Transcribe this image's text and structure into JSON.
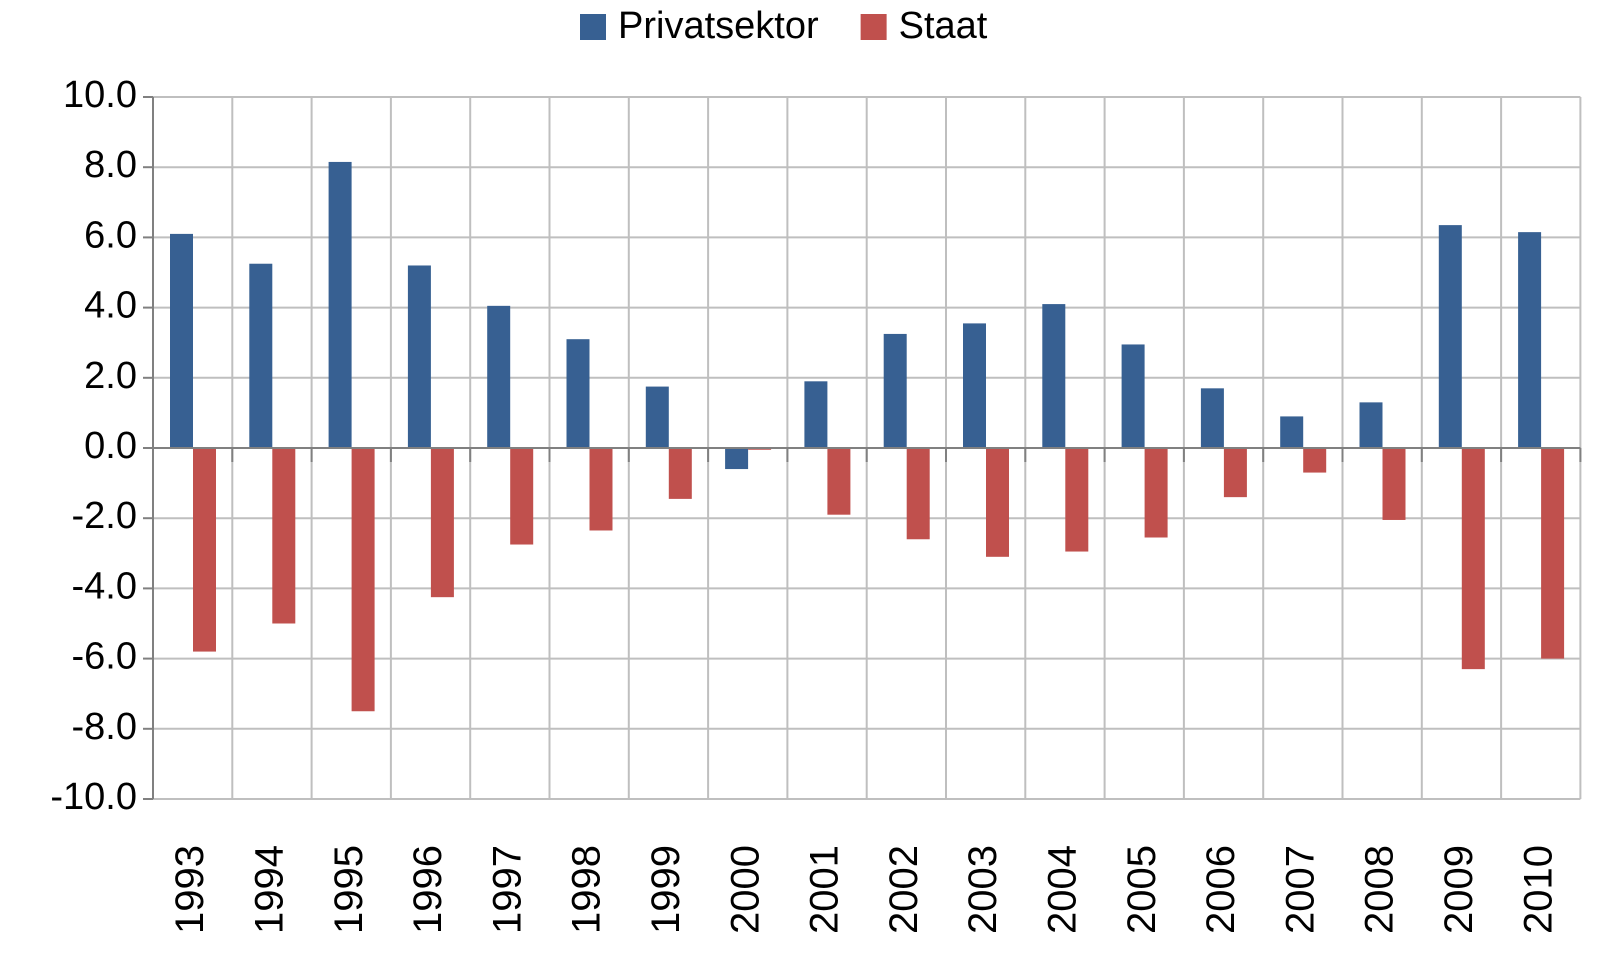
{
  "chart_data": {
    "type": "bar",
    "categories": [
      "1993",
      "1994",
      "1995",
      "1996",
      "1997",
      "1998",
      "1999",
      "2000",
      "2001",
      "2002",
      "2003",
      "2004",
      "2005",
      "2006",
      "2007",
      "2008",
      "2009",
      "2010"
    ],
    "series": [
      {
        "name": "Privatsektor",
        "color": "#376092",
        "values": [
          6.1,
          5.25,
          8.15,
          5.2,
          4.05,
          3.1,
          1.75,
          -0.6,
          1.9,
          3.25,
          3.55,
          4.1,
          2.95,
          1.7,
          0.9,
          1.3,
          6.35,
          6.15
        ]
      },
      {
        "name": "Staat",
        "color": "#c0504d",
        "values": [
          -5.8,
          -5.0,
          -7.5,
          -4.25,
          -2.75,
          -2.35,
          -1.45,
          -0.05,
          -1.9,
          -2.6,
          -3.1,
          -2.95,
          -2.55,
          -1.4,
          -0.7,
          -2.05,
          -6.3,
          -6.0
        ]
      }
    ],
    "ylim": [
      -10,
      10
    ],
    "yticks": [
      {
        "value": -10,
        "label": "-10.0"
      },
      {
        "value": -8,
        "label": "-8.0"
      },
      {
        "value": -6,
        "label": "-6.0"
      },
      {
        "value": -4,
        "label": "-4.0"
      },
      {
        "value": -2,
        "label": "-2.0"
      },
      {
        "value": 0,
        "label": "0.0"
      },
      {
        "value": 2,
        "label": "2.0"
      },
      {
        "value": 4,
        "label": "4.0"
      },
      {
        "value": 6,
        "label": "6.0"
      },
      {
        "value": 8,
        "label": "8.0"
      },
      {
        "value": 10,
        "label": "10.0"
      }
    ],
    "grid": true,
    "legend": "top"
  }
}
